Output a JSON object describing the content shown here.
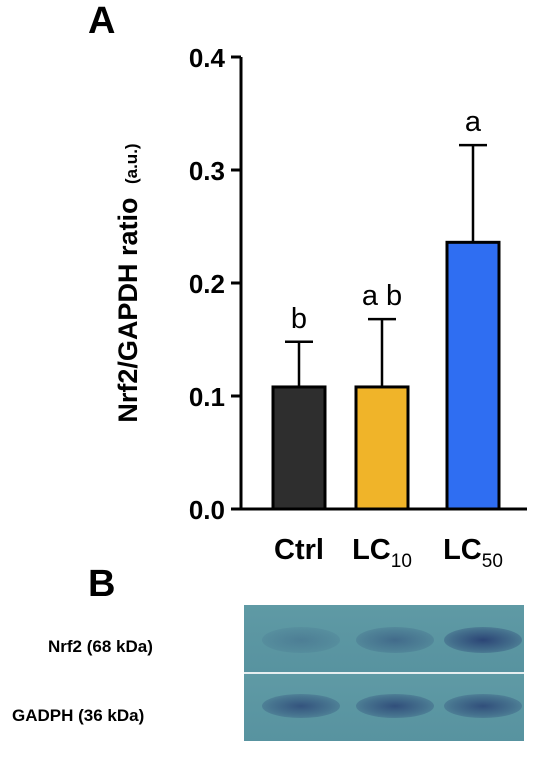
{
  "panel_a_letter": "A",
  "panel_b_letter": "B",
  "chart_data": {
    "type": "bar",
    "ylabel": "Nrf2/GAPDH ratio",
    "ylabel_unit": "(a.u.)",
    "ylim": [
      0,
      0.4
    ],
    "yticks": [
      "0.0",
      "0.1",
      "0.2",
      "0.3",
      "0.4"
    ],
    "categories": [
      {
        "base": "Ctrl",
        "sub": ""
      },
      {
        "base": "LC",
        "sub": "10"
      },
      {
        "base": "LC",
        "sub": "50"
      }
    ],
    "values": [
      0.108,
      0.108,
      0.236
    ],
    "errors": [
      0.04,
      0.06,
      0.086
    ],
    "significance": [
      "b",
      "a b",
      "a"
    ],
    "colors": [
      "#2e2e2e",
      "#f0b429",
      "#2f6ef2"
    ]
  },
  "blot": {
    "rows": [
      {
        "label": "Nrf2 (68 kDa)"
      },
      {
        "label": "GADPH (36 kDa)"
      }
    ],
    "band_intensity": [
      [
        0.25,
        0.45,
        0.85
      ],
      [
        0.7,
        0.75,
        0.75
      ]
    ]
  }
}
